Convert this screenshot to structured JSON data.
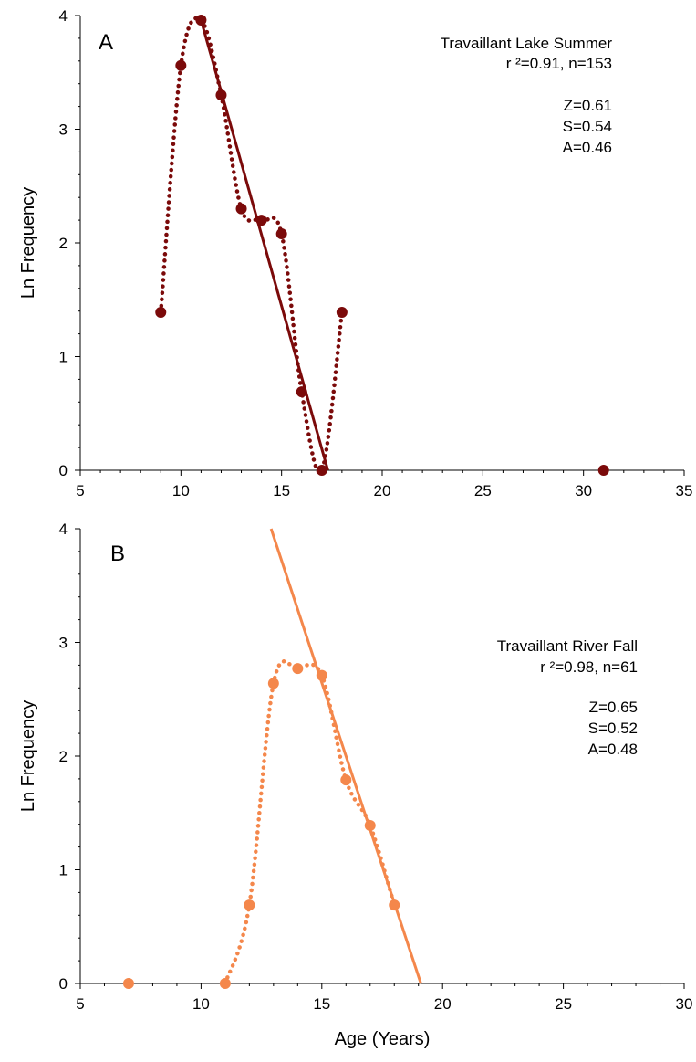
{
  "chart_data": [
    {
      "type": "scatter",
      "panel_label": "A",
      "title": "",
      "xlabel": "",
      "ylabel": "Ln Frequency",
      "xlim": [
        5,
        35
      ],
      "ylim": [
        0,
        4
      ],
      "x_ticks": [
        5,
        10,
        15,
        20,
        25,
        30,
        35
      ],
      "y_ticks": [
        0,
        1,
        2,
        3,
        4
      ],
      "grid": false,
      "color": "#7b0a0a",
      "series": [
        {
          "style": "dotted-line-with-markers",
          "points": [
            [
              9,
              1.39
            ],
            [
              10,
              3.56
            ],
            [
              11,
              3.96
            ],
            [
              12,
              3.3
            ],
            [
              13,
              2.3
            ],
            [
              14,
              2.2
            ],
            [
              15,
              2.08
            ],
            [
              16,
              0.69
            ],
            [
              17,
              0.0
            ],
            [
              18,
              1.39
            ]
          ]
        },
        {
          "style": "markers-only",
          "points": [
            [
              31,
              0.0
            ]
          ]
        },
        {
          "style": "regression-line",
          "points": [
            [
              11,
              3.96
            ],
            [
              17.3,
              0.0
            ]
          ]
        }
      ],
      "annotations": {
        "name": "Travaillant Lake Summer",
        "fit": "r ²=0.91, n=153",
        "z": "Z=0.61",
        "s": "S=0.54",
        "a": "A=0.46"
      }
    },
    {
      "type": "scatter",
      "panel_label": "B",
      "title": "",
      "xlabel": "Age (Years)",
      "ylabel": "Ln Frequency",
      "xlim": [
        5,
        30
      ],
      "ylim": [
        0,
        4
      ],
      "x_ticks": [
        5,
        10,
        15,
        20,
        25,
        30
      ],
      "y_ticks": [
        0,
        1,
        2,
        3,
        4
      ],
      "grid": false,
      "color": "#f4874b",
      "series": [
        {
          "style": "dotted-line-with-markers",
          "points": [
            [
              11,
              0.0
            ],
            [
              12,
              0.69
            ],
            [
              13,
              2.64
            ],
            [
              14,
              2.77
            ],
            [
              15,
              2.71
            ],
            [
              16,
              1.79
            ],
            [
              17,
              1.39
            ],
            [
              18,
              0.69
            ]
          ]
        },
        {
          "style": "markers-only",
          "points": [
            [
              7,
              0.0
            ]
          ]
        },
        {
          "style": "regression-line",
          "points": [
            [
              12.9,
              4.0
            ],
            [
              19.1,
              0.0
            ]
          ]
        }
      ],
      "annotations": {
        "name": "Travaillant River Fall",
        "fit": "r ²=0.98, n=61",
        "z": "Z=0.65",
        "s": "S=0.52",
        "a": "A=0.48"
      }
    }
  ]
}
